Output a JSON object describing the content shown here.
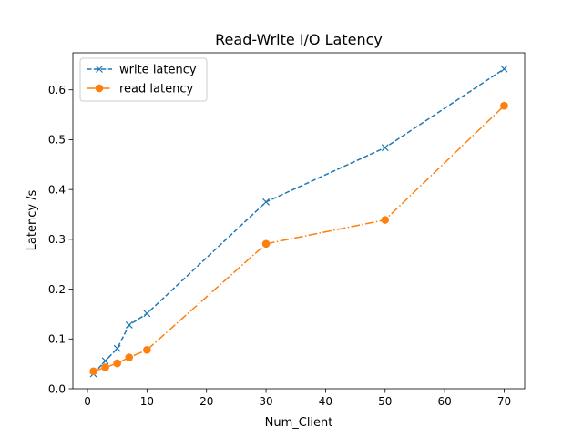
{
  "chart_data": {
    "type": "line",
    "title": "Read-Write I/O Latency",
    "xlabel": "Num_Client",
    "ylabel": "Latency /s",
    "xlim": [
      -2.45,
      73.45
    ],
    "ylim": [
      0,
      0.6744
    ],
    "x_ticks": [
      0,
      10,
      20,
      30,
      40,
      50,
      60,
      70
    ],
    "y_ticks": [
      0.0,
      0.1,
      0.2,
      0.3,
      0.4,
      0.5,
      0.6
    ],
    "x_tick_labels": [
      "0",
      "10",
      "20",
      "30",
      "40",
      "50",
      "60",
      "70"
    ],
    "y_tick_labels": [
      "0.0",
      "0.1",
      "0.2",
      "0.3",
      "0.4",
      "0.5",
      "0.6"
    ],
    "grid": false,
    "legend_position": "top-left",
    "series": [
      {
        "name": "write latency",
        "color": "#1f77b4",
        "linestyle": "dashed",
        "marker": "x",
        "x": [
          1,
          3,
          5,
          7,
          10,
          30,
          50,
          70
        ],
        "y": [
          0.03,
          0.056,
          0.081,
          0.128,
          0.151,
          0.375,
          0.484,
          0.642
        ]
      },
      {
        "name": "read latency",
        "color": "#ff7f0e",
        "linestyle": "dashdot",
        "marker": "circle",
        "x": [
          1,
          3,
          5,
          7,
          10,
          30,
          50,
          70
        ],
        "y": [
          0.035,
          0.043,
          0.051,
          0.063,
          0.078,
          0.291,
          0.339,
          0.568
        ]
      }
    ]
  }
}
